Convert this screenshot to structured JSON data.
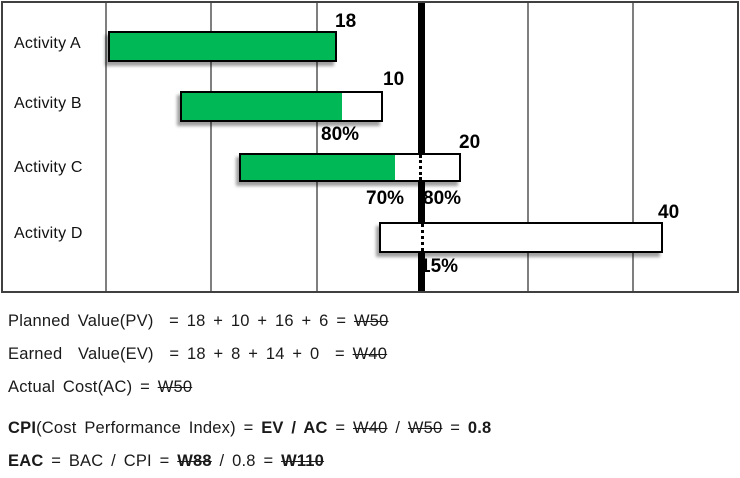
{
  "chart_data": {
    "type": "bar",
    "subtype": "horizontal-gantt-evm",
    "title": "",
    "categories": [
      "Activity A",
      "Activity B",
      "Activity C",
      "Activity D"
    ],
    "series": [
      {
        "name": "total_bar_length (BAC per activity)",
        "values": [
          18,
          10,
          20,
          40
        ]
      },
      {
        "name": "earned_green_portion (EV)",
        "values": [
          18,
          8,
          14,
          0
        ]
      }
    ],
    "bar_end_labels": [
      "18",
      "10",
      "20",
      "40"
    ],
    "percent_complete_labels": [
      [],
      [
        "80%"
      ],
      [
        "70%",
        "80%"
      ],
      [
        "15%"
      ]
    ],
    "status_line": {
      "description": "thick vertical data-date line",
      "position_columns": 3,
      "total_columns": 6
    },
    "grid": true,
    "legend": false,
    "colors": {
      "earned_fill": "#00B956",
      "remaining_fill": "#FFFFFF",
      "bar_border": "#000000",
      "gridline": "#7F7F7F",
      "status_line": "#000000"
    }
  },
  "chart": {
    "rows": [
      {
        "label": "Activity A",
        "end_label": "18"
      },
      {
        "label": "Activity B",
        "end_label": "10",
        "pct": "80%"
      },
      {
        "label": "Activity C",
        "end_label": "20",
        "pct_left": "70%",
        "pct_right": "80%"
      },
      {
        "label": "Activity D",
        "end_label": "40",
        "pct": "15%"
      }
    ]
  },
  "notes": {
    "lines": [
      [
        {
          "t": "Planned Value(PV)  = 18 + 10 + 16 + 6 = "
        },
        {
          "t": "W50",
          "strike": true
        }
      ],
      [
        {
          "t": "Earned  Value(EV)  = 18 + 8 + 14 + 0  = "
        },
        {
          "t": "W40",
          "strike": true
        }
      ],
      [
        {
          "t": "Actual Cost(AC) = "
        },
        {
          "t": "W50",
          "strike": true
        }
      ],
      [
        {
          "t": "CPI",
          "bold": true
        },
        {
          "t": "(Cost Performance Index) = "
        },
        {
          "t": "EV / AC",
          "bold": true
        },
        {
          "t": " = "
        },
        {
          "t": "W40",
          "strike": true
        },
        {
          "t": " / "
        },
        {
          "t": "W50",
          "strike": true
        },
        {
          "t": " = "
        },
        {
          "t": "0.8",
          "bold": true
        }
      ],
      [
        {
          "t": "EAC",
          "bold": true
        },
        {
          "t": " = BAC / CPI = "
        },
        {
          "t": "W88",
          "bold": true,
          "strike": true
        },
        {
          "t": " / 0.8 = "
        },
        {
          "t": "W110",
          "bold": true,
          "strike": true
        }
      ]
    ]
  }
}
